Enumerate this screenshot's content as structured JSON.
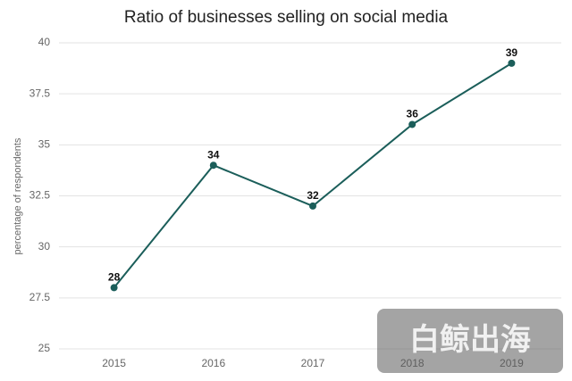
{
  "chart_data": {
    "type": "line",
    "title": "Ratio of businesses selling on social media",
    "y_label": "percentage of respondents",
    "categories": [
      "2015",
      "2016",
      "2017",
      "2018",
      "2019"
    ],
    "values": [
      28,
      34,
      32,
      36,
      39
    ],
    "color": "#1b5e5a",
    "ylim": [
      25,
      40
    ],
    "yticks": [
      25,
      27.5,
      30,
      32.5,
      35,
      37.5,
      40
    ],
    "grid": true,
    "watermark": "白鲸出海"
  }
}
